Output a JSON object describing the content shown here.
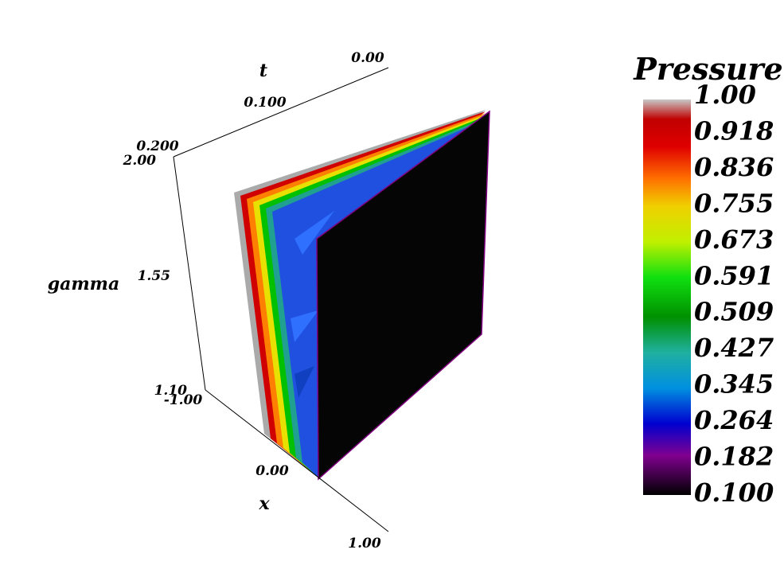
{
  "axes": {
    "t": {
      "label": "t",
      "ticks": [
        "0.00",
        "0.100",
        "0.200"
      ]
    },
    "gamma": {
      "label": "gamma",
      "ticks": [
        "2.00",
        "1.55",
        "1.10"
      ]
    },
    "x": {
      "label": "x",
      "ticks": [
        "-1.00",
        "0.00",
        "1.00"
      ]
    }
  },
  "colorbar": {
    "title": "Pressure",
    "labels": [
      "1.00",
      "0.918",
      "0.836",
      "0.755",
      "0.673",
      "0.591",
      "0.509",
      "0.427",
      "0.345",
      "0.264",
      "0.182",
      "0.100"
    ]
  }
}
